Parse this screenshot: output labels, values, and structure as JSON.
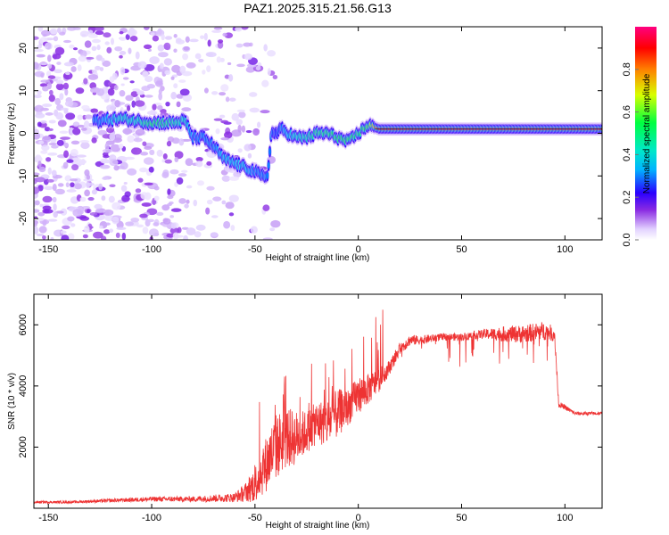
{
  "title": "PAZ1.2025.315.21.56.G13",
  "chart_data": [
    {
      "type": "heatmap",
      "name": "spectrogram",
      "xlabel": "Height of straight line (km)",
      "ylabel": "Frequency (Hz)",
      "xlim": [
        -157,
        118
      ],
      "ylim": [
        -25,
        25
      ],
      "xticks": [
        -150,
        -100,
        -50,
        0,
        50,
        100
      ],
      "yticks": [
        -20,
        -10,
        0,
        10,
        20
      ],
      "colorbar": {
        "label": "Normalized spectral amplitude",
        "range": [
          0,
          1
        ],
        "ticks": [
          0.0,
          0.2,
          0.4,
          0.6,
          0.8
        ],
        "colors": [
          "#ffffff",
          "#c9a8ff",
          "#8a2be2",
          "#2a00ff",
          "#00c8ff",
          "#00ff80",
          "#ffff00",
          "#ff0000",
          "#ff0080"
        ]
      },
      "ridge": {
        "height_km": [
          -125,
          -115,
          -108,
          -100,
          -93,
          -88,
          -84,
          -80,
          -75,
          -70,
          -65,
          -60,
          -55,
          -50,
          -47,
          -44,
          -42,
          -40,
          -37,
          -34,
          -30,
          -25,
          -20,
          -15,
          -10,
          -5,
          0,
          5,
          10,
          30,
          50,
          70,
          90,
          100,
          110,
          118
        ],
        "frequency_hz": [
          3,
          3.5,
          3,
          2.5,
          2.5,
          2.5,
          3,
          -1,
          -1,
          -3,
          -6,
          -7,
          -8,
          -9,
          -10,
          -10,
          0,
          0,
          1,
          0,
          -1,
          -1,
          0,
          0,
          -1,
          -2,
          0,
          2,
          1,
          1,
          1,
          1,
          1,
          1,
          1,
          1
        ],
        "amplitude": [
          0.3,
          0.4,
          0.4,
          0.55,
          0.5,
          0.45,
          0.4,
          0.3,
          0.3,
          0.3,
          0.35,
          0.35,
          0.35,
          0.3,
          0.3,
          0.3,
          0.3,
          0.25,
          0.3,
          0.35,
          0.4,
          0.45,
          0.5,
          0.5,
          0.55,
          0.55,
          0.5,
          0.6,
          0.9,
          0.92,
          0.92,
          0.92,
          0.92,
          0.92,
          0.92,
          0.92
        ]
      }
    },
    {
      "type": "line",
      "name": "snr",
      "xlabel": "Height of straight line (km)",
      "ylabel": "SNR (10 * v/v)",
      "xlim": [
        -157,
        118
      ],
      "ylim": [
        0,
        7000
      ],
      "xticks": [
        -150,
        -100,
        -50,
        0,
        50,
        100
      ],
      "yticks": [
        2000,
        4000,
        6000
      ],
      "series": [
        {
          "name": "SNR",
          "color": "#ee3333",
          "x": [
            -157,
            -140,
            -120,
            -100,
            -80,
            -60,
            -55,
            -50,
            -45,
            -40,
            -35,
            -30,
            -25,
            -20,
            -15,
            -10,
            -5,
            0,
            5,
            10,
            15,
            20,
            25,
            30,
            40,
            50,
            60,
            70,
            80,
            90,
            95,
            97,
            100,
            105,
            110,
            118
          ],
          "y": [
            200,
            200,
            250,
            300,
            300,
            350,
            500,
            800,
            1400,
            2000,
            2300,
            2300,
            2500,
            2800,
            2800,
            3100,
            3300,
            3700,
            3900,
            4200,
            4600,
            5200,
            5500,
            5500,
            5600,
            5600,
            5700,
            5700,
            5700,
            5800,
            5700,
            3400,
            3300,
            3100,
            3100,
            3100
          ],
          "noise": [
            40,
            40,
            60,
            80,
            90,
            150,
            300,
            600,
            900,
            1100,
            1000,
            900,
            700,
            700,
            800,
            800,
            600,
            600,
            500,
            400,
            250,
            200,
            180,
            150,
            120,
            120,
            150,
            250,
            300,
            300,
            250,
            100,
            80,
            60,
            60,
            60
          ]
        }
      ]
    }
  ]
}
